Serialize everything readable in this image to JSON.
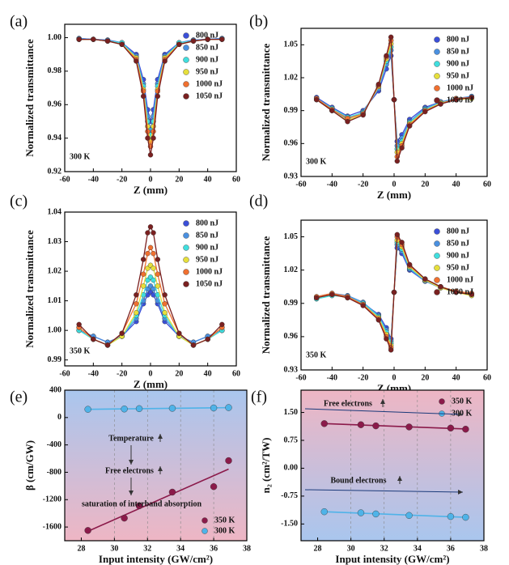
{
  "chart_data": [
    {
      "type": "scatter",
      "panel_label": "(a)",
      "annotation": "300 K",
      "xlabel": "Z (mm)",
      "ylabel": "Normalized transmittance",
      "x": [
        -50,
        -40,
        -30,
        -20,
        -10,
        -5,
        -2,
        0,
        2,
        5,
        10,
        20,
        30,
        40,
        50
      ],
      "xlim": [
        -60,
        60
      ],
      "xticks": [
        -60,
        -40,
        -20,
        0,
        20,
        40,
        60
      ],
      "ylim": [
        0.92,
        1.008
      ],
      "yticks": [
        0.92,
        0.94,
        0.96,
        0.98,
        {
          "value": 1,
          "label": "1.00"
        }
      ],
      "legend": "upper right",
      "series": [
        {
          "name": "800 nJ",
          "color": "#3b4fd8",
          "values": [
            0.9995,
            0.999,
            0.9986,
            0.997,
            0.99,
            0.975,
            0.957,
            0.95,
            0.957,
            0.975,
            0.99,
            0.997,
            0.9986,
            0.999,
            0.9995
          ]
        },
        {
          "name": "850 nJ",
          "color": "#4a90e0",
          "values": [
            0.9995,
            0.999,
            0.9985,
            0.9968,
            0.989,
            0.9725,
            0.953,
            0.945,
            0.953,
            0.9725,
            0.989,
            0.9968,
            0.9985,
            0.999,
            0.9995
          ]
        },
        {
          "name": "900 nJ",
          "color": "#40dede",
          "values": [
            0.999,
            0.999,
            0.998,
            0.997,
            0.988,
            0.971,
            0.95,
            0.942,
            0.95,
            0.971,
            0.988,
            0.997,
            0.998,
            0.999,
            0.999
          ]
        },
        {
          "name": "950 nJ",
          "color": "#e6df3c",
          "values": [
            0.999,
            0.999,
            0.998,
            0.996,
            0.988,
            0.969,
            0.947,
            0.938,
            0.947,
            0.969,
            0.988,
            0.996,
            0.998,
            0.999,
            0.999
          ]
        },
        {
          "name": "1000 nJ",
          "color": "#f07030",
          "values": [
            0.999,
            0.999,
            0.998,
            0.996,
            0.987,
            0.968,
            0.944,
            0.935,
            0.944,
            0.968,
            0.987,
            0.996,
            0.998,
            0.999,
            0.999
          ]
        },
        {
          "name": "1050 nJ",
          "color": "#7a2020",
          "values": [
            0.999,
            0.999,
            0.998,
            0.996,
            0.986,
            0.965,
            0.94,
            0.93,
            0.94,
            0.965,
            0.986,
            0.996,
            0.998,
            0.999,
            0.999
          ]
        }
      ]
    },
    {
      "type": "scatter",
      "panel_label": "(b)",
      "annotation": "300 K",
      "xlabel": "Z (mm)",
      "ylabel": "Normalized transmittance",
      "x": [
        -50,
        -40,
        -30,
        -20,
        -10,
        -5,
        -2,
        0,
        2,
        5,
        10,
        20,
        30,
        40,
        50
      ],
      "xlim": [
        -60,
        60
      ],
      "xticks": [
        -60,
        -40,
        -20,
        0,
        20,
        40,
        60
      ],
      "ylim": [
        0.93,
        1.065
      ],
      "yticks": [
        0.93,
        0.96,
        0.99,
        1.02,
        1.05
      ],
      "legend": "upper right",
      "series": [
        {
          "name": "800 nJ",
          "color": "#3b4fd8",
          "values": [
            1.002,
            0.993,
            0.985,
            0.99,
            1.008,
            1.028,
            1.04,
            1.0,
            0.962,
            0.968,
            0.982,
            0.993,
            0.998,
            1.0,
            1.002
          ]
        },
        {
          "name": "850 nJ",
          "color": "#4a90e0",
          "values": [
            1.0,
            0.99,
            0.982,
            0.989,
            1.01,
            1.032,
            1.045,
            1.0,
            0.958,
            0.965,
            0.98,
            0.992,
            0.998,
            1.001,
            1.003
          ]
        },
        {
          "name": "900 nJ",
          "color": "#40dede",
          "values": [
            1.001,
            0.992,
            0.984,
            0.988,
            1.012,
            1.035,
            1.048,
            1.0,
            0.955,
            0.962,
            0.979,
            0.991,
            0.997,
            1.0,
            1.002
          ]
        },
        {
          "name": "950 nJ",
          "color": "#e6df3c",
          "values": [
            1.0,
            0.99,
            0.981,
            0.987,
            1.012,
            1.037,
            1.051,
            1.0,
            0.952,
            0.96,
            0.978,
            0.99,
            0.997,
            1.0,
            1.001
          ]
        },
        {
          "name": "1000 nJ",
          "color": "#f07030",
          "values": [
            1.001,
            0.991,
            0.983,
            0.987,
            1.013,
            1.039,
            1.054,
            1.0,
            0.948,
            0.958,
            0.977,
            0.99,
            0.996,
            1.001,
            1.002
          ]
        },
        {
          "name": "1050 nJ",
          "color": "#7a2020",
          "values": [
            1.0,
            0.99,
            0.98,
            0.986,
            1.014,
            1.04,
            1.057,
            1.0,
            0.944,
            0.956,
            0.976,
            0.989,
            0.996,
            1.0,
            1.002
          ]
        }
      ]
    },
    {
      "type": "scatter",
      "panel_label": "(c)",
      "annotation": "350 K",
      "xlabel": "Z (mm)",
      "ylabel": "Normalized transmittance",
      "x": [
        -50,
        -40,
        -30,
        -20,
        -10,
        -5,
        -2,
        0,
        2,
        5,
        10,
        20,
        30,
        40,
        50
      ],
      "xlim": [
        -60,
        60
      ],
      "xticks": [
        -60,
        -40,
        -20,
        0,
        20,
        40,
        60
      ],
      "ylim": [
        0.988,
        1.04
      ],
      "yticks": [
        0.99,
        {
          "value": 1,
          "label": "1.00"
        },
        1.01,
        1.02,
        1.03,
        1.04
      ],
      "legend": "upper right",
      "series": [
        {
          "name": "800 nJ",
          "color": "#3b4fd8",
          "values": [
            1.0,
            0.998,
            0.996,
            0.998,
            1.003,
            1.009,
            1.012,
            1.013,
            1.012,
            1.009,
            1.003,
            0.998,
            0.996,
            0.998,
            1.0
          ]
        },
        {
          "name": "850 nJ",
          "color": "#4a90e0",
          "values": [
            1.0,
            0.998,
            0.996,
            0.998,
            1.004,
            1.01,
            1.014,
            1.015,
            1.014,
            1.01,
            1.004,
            0.998,
            0.996,
            0.998,
            1.0
          ]
        },
        {
          "name": "900 nJ",
          "color": "#40dede",
          "values": [
            1.0,
            0.997,
            0.995,
            0.998,
            1.005,
            1.012,
            1.017,
            1.018,
            1.017,
            1.012,
            1.005,
            0.998,
            0.995,
            0.997,
            1.0
          ]
        },
        {
          "name": "950 nJ",
          "color": "#e6df3c",
          "values": [
            1.001,
            0.997,
            0.995,
            0.998,
            1.006,
            1.015,
            1.021,
            1.022,
            1.021,
            1.015,
            1.006,
            0.998,
            0.995,
            0.997,
            1.001
          ]
        },
        {
          "name": "1000 nJ",
          "color": "#f07030",
          "values": [
            1.001,
            0.997,
            0.995,
            0.999,
            1.009,
            1.019,
            1.026,
            1.028,
            1.026,
            1.019,
            1.009,
            0.999,
            0.995,
            0.997,
            1.001
          ]
        },
        {
          "name": "1050 nJ",
          "color": "#7a2020",
          "values": [
            1.002,
            0.997,
            0.995,
            0.999,
            1.012,
            1.024,
            1.033,
            1.035,
            1.033,
            1.024,
            1.012,
            0.999,
            0.995,
            0.997,
            1.002
          ]
        }
      ]
    },
    {
      "type": "scatter",
      "panel_label": "(d)",
      "annotation": "350 K",
      "xlabel": "Z (mm)",
      "ylabel": "Normalized transmittance",
      "x": [
        -50,
        -40,
        -30,
        -20,
        -10,
        -5,
        -2,
        0,
        2,
        5,
        10,
        20,
        30,
        40,
        50
      ],
      "xlim": [
        -60,
        60
      ],
      "xticks": [
        -60,
        -40,
        -20,
        0,
        20,
        40,
        60
      ],
      "ylim": [
        0.93,
        1.065
      ],
      "yticks": [
        0.93,
        0.96,
        0.99,
        1.02,
        1.05
      ],
      "legend": "upper right",
      "series": [
        {
          "name": "800 nJ",
          "color": "#3b4fd8",
          "values": [
            0.995,
            0.998,
            0.996,
            0.99,
            0.98,
            0.968,
            0.958,
            1.0,
            1.04,
            1.035,
            1.02,
            1.01,
            1.005,
            1.0,
            0.998
          ]
        },
        {
          "name": "850 nJ",
          "color": "#4a90e0",
          "values": [
            0.996,
            0.999,
            0.997,
            0.991,
            0.979,
            0.966,
            0.956,
            1.0,
            1.043,
            1.037,
            1.021,
            1.01,
            1.004,
            1.0,
            0.999
          ]
        },
        {
          "name": "900 nJ",
          "color": "#40dede",
          "values": [
            0.994,
            0.997,
            0.996,
            0.99,
            0.978,
            0.964,
            0.954,
            1.0,
            1.045,
            1.039,
            1.022,
            1.011,
            1.005,
            1.001,
            0.998
          ]
        },
        {
          "name": "950 nJ",
          "color": "#e6df3c",
          "values": [
            0.995,
            0.998,
            0.995,
            0.989,
            0.977,
            0.962,
            0.952,
            1.0,
            1.047,
            1.041,
            1.023,
            1.011,
            1.004,
            1.0,
            0.997
          ]
        },
        {
          "name": "1000 nJ",
          "color": "#f07030",
          "values": [
            0.996,
            0.999,
            0.996,
            0.989,
            0.976,
            0.96,
            0.95,
            1.0,
            1.05,
            1.043,
            1.024,
            1.012,
            1.005,
            1.001,
            0.999
          ]
        },
        {
          "name": "1050 nJ",
          "color": "#7a2020",
          "values": [
            0.995,
            0.998,
            0.995,
            0.988,
            0.975,
            0.958,
            0.948,
            1.0,
            1.052,
            1.045,
            1.025,
            1.012,
            1.005,
            1.0,
            0.998
          ]
        }
      ]
    },
    {
      "type": "scatter",
      "panel_label": "(e)",
      "xlabel": "Input intensity (GW/cm²)",
      "ylabel": "β (cm/GW)",
      "trendline": true,
      "grid_x": true,
      "background": [
        "#a9c6ee",
        "#eeb6c4"
      ],
      "x": [
        28.4,
        30.6,
        31.5,
        33.5,
        36.0,
        36.9
      ],
      "xlim": [
        27,
        38
      ],
      "xticks": [
        28,
        30,
        32,
        34,
        36,
        38
      ],
      "ylim": [
        -1800,
        400
      ],
      "yticks": [
        -1600,
        -1200,
        -800,
        -400,
        0,
        400
      ],
      "legend": "lower right",
      "annotations": [
        {
          "text": "Temperature",
          "color": "#f07020"
        },
        {
          "text": "Free electrons",
          "color": "#d02020"
        },
        {
          "text": "saturation of interband absorption",
          "color": "#7a1050"
        }
      ],
      "series": [
        {
          "name": "350 K",
          "color": "#8b1a4a",
          "values": [
            -1650,
            -1470,
            -1290,
            -1090,
            -1010,
            -630
          ]
        },
        {
          "name": "300 K",
          "color": "#4fb3e8",
          "values": [
            120,
            125,
            130,
            135,
            140,
            145
          ]
        }
      ]
    },
    {
      "type": "scatter",
      "panel_label": "(f)",
      "xlabel": "Input intensity (GW/cm²)",
      "ylabel": "n₂ (cm²/TW)",
      "trendline": true,
      "grid_x": true,
      "background": [
        "#eeb6c4",
        "#a9c6ee"
      ],
      "x": [
        28.4,
        30.6,
        31.5,
        33.5,
        36.0,
        36.9
      ],
      "xlim": [
        27,
        38
      ],
      "xticks": [
        28,
        30,
        32,
        34,
        36,
        38
      ],
      "ylim": [
        -1.95,
        2.1
      ],
      "yticks": [
        {
          "value": -1.5,
          "label": "-1.50"
        },
        {
          "value": -0.75,
          "label": "-0.75"
        },
        {
          "value": 0,
          "label": "0.00"
        },
        {
          "value": 0.75,
          "label": "0.75"
        },
        {
          "value": 1.5,
          "label": "1.50"
        }
      ],
      "legend": "upper right",
      "annotations": [
        {
          "text": "Free electrons",
          "color": "#5a0a2a"
        },
        {
          "text": "Bound electrons",
          "color": "#1a3a7a"
        }
      ],
      "series": [
        {
          "name": "350 K",
          "color": "#8b1a4a",
          "values": [
            1.2,
            1.17,
            1.14,
            1.11,
            1.08,
            1.05
          ]
        },
        {
          "name": "300 K",
          "color": "#4fb3e8",
          "values": [
            -1.17,
            -1.2,
            -1.23,
            -1.27,
            -1.3,
            -1.32
          ]
        }
      ]
    }
  ]
}
